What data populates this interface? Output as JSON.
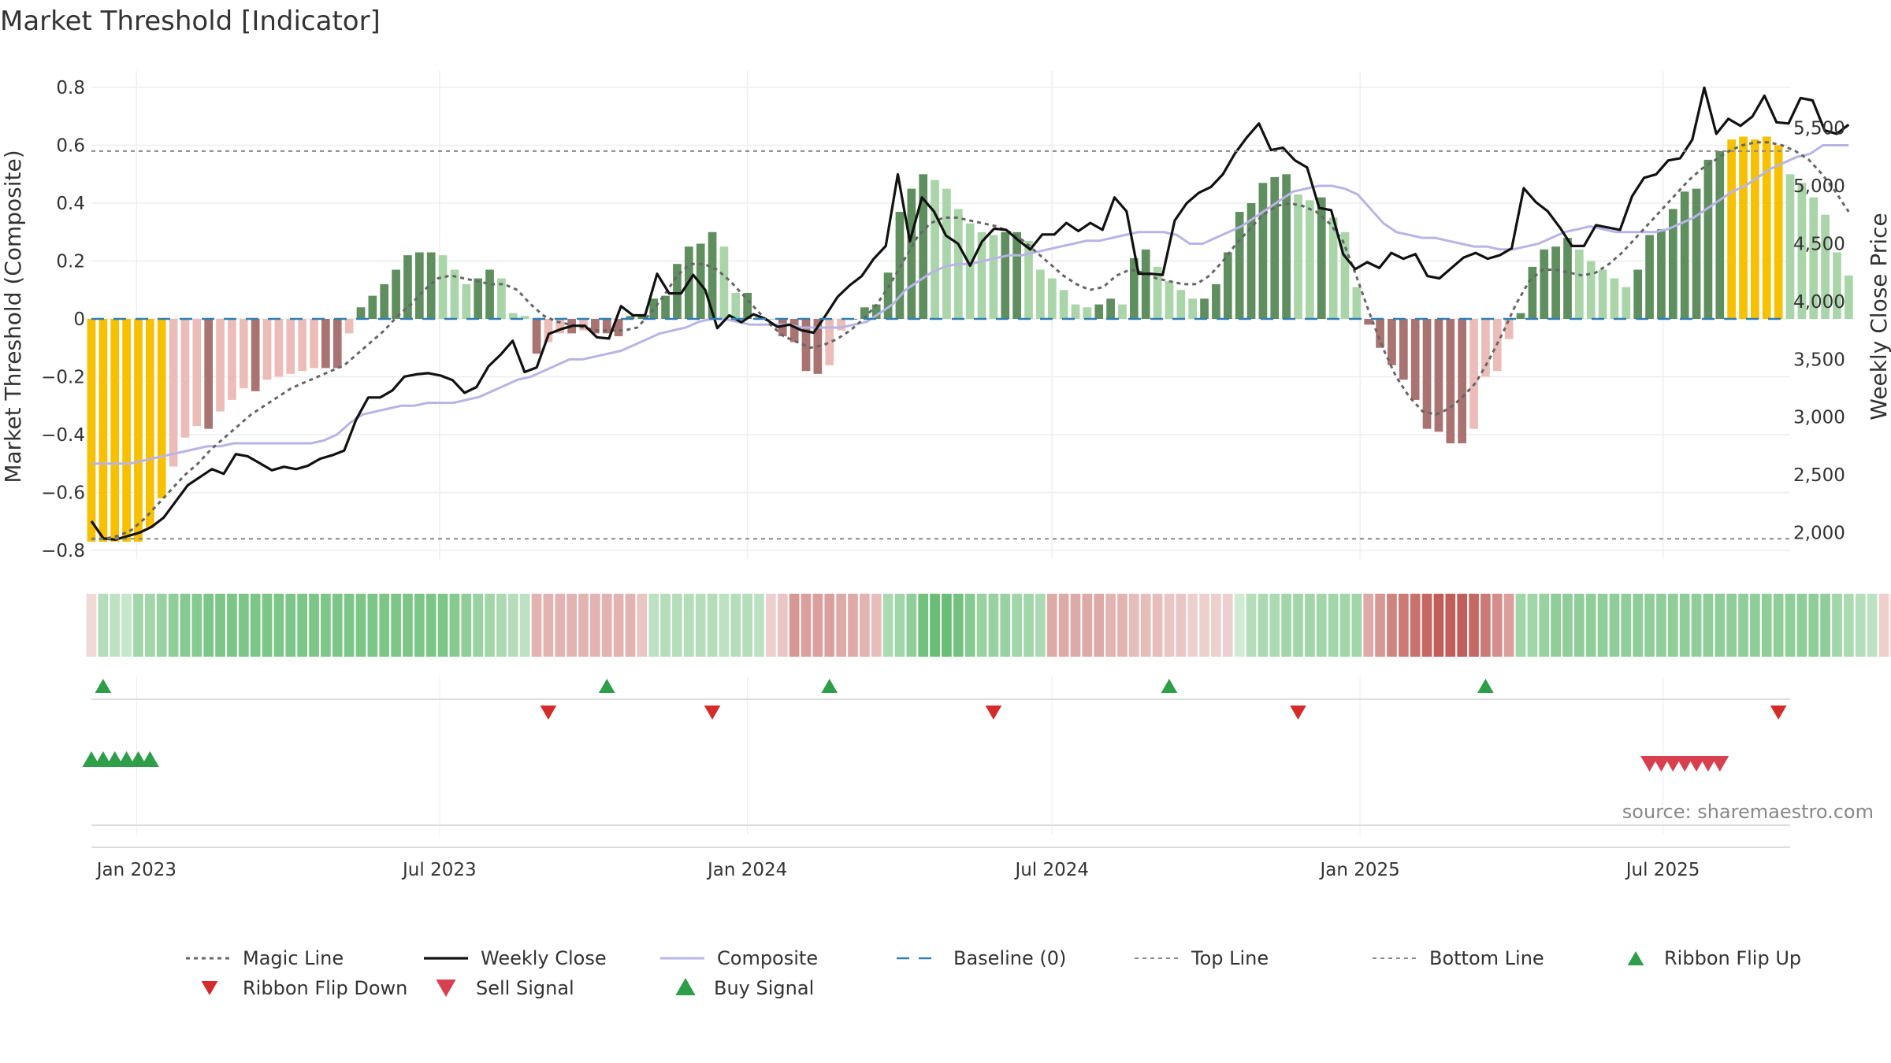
{
  "chart_data": {
    "type": "bar",
    "title": "Market Threshold [Indicator]",
    "ylabel_left": "Market Threshold (Composite)",
    "ylabel_right": "Weekly Close Price",
    "source": "source: sharemaestro.com",
    "x_start": "2022-12-05",
    "x_end": "2025-09-15",
    "x_ticks": [
      {
        "date": "2023-01-01",
        "label": "Jan 2023"
      },
      {
        "date": "2023-07-01",
        "label": "Jul 2023"
      },
      {
        "date": "2024-01-01",
        "label": "Jan 2024"
      },
      {
        "date": "2024-07-01",
        "label": "Jul 2024"
      },
      {
        "date": "2025-01-01",
        "label": "Jan 2025"
      },
      {
        "date": "2025-07-01",
        "label": "Jul 2025"
      }
    ],
    "y_left": {
      "min": -0.83,
      "max": 0.83,
      "ticks": [
        {
          "v": 0.8,
          "label": "0.8"
        },
        {
          "v": 0.6,
          "label": "0.6"
        },
        {
          "v": 0.4,
          "label": "0.4"
        },
        {
          "v": 0.2,
          "label": "0.2"
        },
        {
          "v": 0,
          "label": "0"
        },
        {
          "v": -0.2,
          "label": "−0.2"
        },
        {
          "v": -0.4,
          "label": "−0.4"
        },
        {
          "v": -0.6,
          "label": "−0.6"
        },
        {
          "v": -0.8,
          "label": "−0.8"
        }
      ]
    },
    "y_right": {
      "min": 1772,
      "max": 5927,
      "ticks": [
        {
          "v": 5500,
          "label": "5,500"
        },
        {
          "v": 5000,
          "label": "5,000"
        },
        {
          "v": 4500,
          "label": "4,500"
        },
        {
          "v": 4000,
          "label": "4,000"
        },
        {
          "v": 3500,
          "label": "3,500"
        },
        {
          "v": 3000,
          "label": "3,000"
        },
        {
          "v": 2500,
          "label": "2,500"
        },
        {
          "v": 2000,
          "label": "2,000"
        }
      ]
    },
    "top_line": 0.58,
    "bottom_line": -0.76,
    "baseline": 0,
    "composite_bars": [
      -0.77,
      -0.77,
      -0.77,
      -0.77,
      -0.77,
      -0.72,
      -0.62,
      -0.51,
      -0.41,
      -0.37,
      -0.38,
      -0.32,
      -0.28,
      -0.24,
      -0.25,
      -0.21,
      -0.2,
      -0.19,
      -0.18,
      -0.17,
      -0.17,
      -0.17,
      -0.05,
      0.04,
      0.08,
      0.12,
      0.17,
      0.22,
      0.23,
      0.23,
      0.22,
      0.17,
      0.12,
      0.14,
      0.17,
      0.14,
      0.02,
      0.01,
      -0.12,
      -0.08,
      -0.05,
      -0.05,
      -0.04,
      -0.05,
      -0.05,
      -0.06,
      0.01,
      0.01,
      0.07,
      0.08,
      0.19,
      0.25,
      0.26,
      0.3,
      0.25,
      0.09,
      0.09,
      0.01,
      0.0,
      -0.06,
      -0.08,
      -0.18,
      -0.19,
      -0.16,
      -0.04,
      0.0,
      0.04,
      0.05,
      0.16,
      0.37,
      0.45,
      0.5,
      0.48,
      0.45,
      0.38,
      0.33,
      0.3,
      0.29,
      0.3,
      0.3,
      0.27,
      0.17,
      0.14,
      0.1,
      0.05,
      0.04,
      0.05,
      0.07,
      0.05,
      0.21,
      0.24,
      0.18,
      0.13,
      0.1,
      0.07,
      0.07,
      0.12,
      0.23,
      0.37,
      0.4,
      0.47,
      0.49,
      0.5,
      0.43,
      0.41,
      0.42,
      0.35,
      0.3,
      0.11,
      -0.02,
      -0.1,
      -0.16,
      -0.21,
      -0.28,
      -0.38,
      -0.39,
      -0.43,
      -0.43,
      -0.38,
      -0.2,
      -0.18,
      -0.07,
      0.02,
      0.18,
      0.24,
      0.25,
      0.28,
      0.24,
      0.2,
      0.17,
      0.14,
      0.11,
      0.17,
      0.29,
      0.31,
      0.38,
      0.44,
      0.45,
      0.55,
      0.58,
      0.62,
      0.63,
      0.62,
      0.63,
      0.6,
      0.5,
      0.47,
      0.42,
      0.36,
      0.23,
      0.15
    ],
    "ribbon_strength": [
      -0.2,
      0.4,
      0.35,
      0.3,
      0.5,
      0.5,
      0.55,
      0.6,
      0.65,
      0.65,
      0.7,
      0.7,
      0.7,
      0.7,
      0.7,
      0.7,
      0.7,
      0.7,
      0.7,
      0.7,
      0.7,
      0.7,
      0.7,
      0.7,
      0.7,
      0.7,
      0.7,
      0.7,
      0.7,
      0.7,
      0.7,
      0.65,
      0.6,
      0.55,
      0.5,
      0.45,
      0.4,
      0.35,
      -0.4,
      -0.4,
      -0.4,
      -0.4,
      -0.4,
      -0.4,
      -0.4,
      -0.4,
      -0.4,
      -0.3,
      0.35,
      0.4,
      0.4,
      0.4,
      0.4,
      0.4,
      0.35,
      0.4,
      0.4,
      0.35,
      -0.25,
      -0.3,
      -0.55,
      -0.5,
      -0.5,
      -0.5,
      -0.45,
      -0.45,
      -0.4,
      -0.35,
      0.45,
      0.5,
      0.6,
      0.75,
      0.8,
      0.8,
      0.75,
      0.65,
      0.55,
      0.55,
      0.55,
      0.5,
      0.5,
      0.45,
      -0.45,
      -0.45,
      -0.45,
      -0.45,
      -0.45,
      -0.4,
      -0.4,
      -0.35,
      -0.35,
      -0.35,
      -0.3,
      -0.3,
      -0.25,
      -0.25,
      -0.25,
      -0.25,
      0.25,
      0.4,
      0.45,
      0.45,
      0.5,
      0.5,
      0.5,
      0.5,
      0.5,
      0.5,
      0.5,
      -0.45,
      -0.55,
      -0.65,
      -0.7,
      -0.75,
      -0.8,
      -0.85,
      -0.85,
      -0.85,
      -0.8,
      -0.7,
      -0.6,
      -0.5,
      0.5,
      0.5,
      0.55,
      0.6,
      0.6,
      0.6,
      0.6,
      0.6,
      0.6,
      0.6,
      0.6,
      0.6,
      0.6,
      0.6,
      0.6,
      0.6,
      0.6,
      0.6,
      0.6,
      0.6,
      0.6,
      0.6,
      0.6,
      0.6,
      0.6,
      0.6,
      0.6,
      0.5,
      0.45,
      0.4,
      0.35,
      -0.25,
      -0.35,
      -0.35
    ],
    "weekly_close": [
      2100,
      1950,
      1940,
      1970,
      2000,
      2050,
      2130,
      2270,
      2410,
      2480,
      2550,
      2510,
      2680,
      2660,
      2600,
      2540,
      2570,
      2550,
      2580,
      2640,
      2670,
      2710,
      2980,
      3170,
      3170,
      3230,
      3350,
      3370,
      3380,
      3360,
      3320,
      3210,
      3260,
      3440,
      3540,
      3660,
      3390,
      3430,
      3720,
      3760,
      3790,
      3790,
      3690,
      3680,
      3960,
      3880,
      3880,
      4240,
      4070,
      4070,
      4230,
      4100,
      3770,
      3880,
      3820,
      3890,
      3850,
      3780,
      3800,
      3750,
      3730,
      3880,
      4040,
      4140,
      4220,
      4370,
      4480,
      5100,
      4520,
      4900,
      4780,
      4570,
      4500,
      4310,
      4520,
      4630,
      4620,
      4530,
      4450,
      4580,
      4580,
      4680,
      4610,
      4680,
      4620,
      4900,
      4780,
      4240,
      4240,
      4230,
      4700,
      4850,
      4940,
      4990,
      5100,
      5280,
      5420,
      5540,
      5310,
      5330,
      5220,
      5160,
      4810,
      4790,
      4410,
      4280,
      4340,
      4290,
      4420,
      4370,
      4410,
      4220,
      4200,
      4290,
      4380,
      4420,
      4370,
      4400,
      4460,
      4980,
      4860,
      4780,
      4640,
      4480,
      4480,
      4660,
      4640,
      4620,
      4910,
      5070,
      5100,
      5220,
      5240,
      5400,
      5850,
      5450,
      5580,
      5520,
      5600,
      5780,
      5550,
      5540,
      5760,
      5740,
      5480,
      5450,
      5530
    ],
    "composite_line": [
      -0.5,
      -0.5,
      -0.5,
      -0.5,
      -0.49,
      -0.48,
      -0.47,
      -0.46,
      -0.45,
      -0.44,
      -0.44,
      -0.43,
      -0.43,
      -0.43,
      -0.43,
      -0.43,
      -0.43,
      -0.43,
      -0.42,
      -0.4,
      -0.36,
      -0.33,
      -0.32,
      -0.31,
      -0.3,
      -0.3,
      -0.29,
      -0.29,
      -0.29,
      -0.28,
      -0.27,
      -0.25,
      -0.23,
      -0.21,
      -0.2,
      -0.18,
      -0.16,
      -0.14,
      -0.14,
      -0.13,
      -0.12,
      -0.11,
      -0.09,
      -0.07,
      -0.05,
      -0.04,
      -0.03,
      -0.01,
      0.0,
      0.0,
      -0.01,
      -0.02,
      -0.02,
      -0.02,
      -0.02,
      -0.03,
      -0.03,
      -0.03,
      -0.03,
      -0.02,
      -0.01,
      0.02,
      0.05,
      0.1,
      0.13,
      0.16,
      0.18,
      0.19,
      0.19,
      0.2,
      0.21,
      0.22,
      0.22,
      0.23,
      0.24,
      0.25,
      0.26,
      0.27,
      0.27,
      0.28,
      0.29,
      0.3,
      0.3,
      0.3,
      0.29,
      0.26,
      0.26,
      0.28,
      0.3,
      0.32,
      0.35,
      0.38,
      0.41,
      0.44,
      0.45,
      0.46,
      0.46,
      0.45,
      0.43,
      0.38,
      0.33,
      0.3,
      0.29,
      0.28,
      0.28,
      0.27,
      0.26,
      0.25,
      0.25,
      0.24,
      0.24,
      0.25,
      0.26,
      0.28,
      0.3,
      0.31,
      0.32,
      0.31,
      0.3,
      0.3,
      0.3,
      0.3,
      0.31,
      0.33,
      0.35,
      0.38,
      0.41,
      0.44,
      0.46,
      0.49,
      0.52,
      0.54,
      0.56,
      0.57,
      0.6,
      0.6,
      0.6
    ],
    "magic_line": [
      -0.76,
      -0.76,
      -0.75,
      -0.73,
      -0.69,
      -0.64,
      -0.59,
      -0.54,
      -0.5,
      -0.45,
      -0.41,
      -0.37,
      -0.33,
      -0.3,
      -0.27,
      -0.24,
      -0.22,
      -0.2,
      -0.18,
      -0.16,
      -0.12,
      -0.08,
      -0.04,
      0.01,
      0.05,
      0.1,
      0.14,
      0.15,
      0.14,
      0.13,
      0.12,
      0.12,
      0.1,
      0.05,
      0.01,
      -0.01,
      -0.02,
      -0.03,
      -0.04,
      -0.04,
      -0.04,
      -0.03,
      0.02,
      0.08,
      0.15,
      0.19,
      0.19,
      0.17,
      0.13,
      0.08,
      0.03,
      -0.02,
      -0.06,
      -0.08,
      -0.1,
      -0.09,
      -0.07,
      -0.04,
      0.0,
      0.05,
      0.12,
      0.2,
      0.28,
      0.33,
      0.35,
      0.35,
      0.34,
      0.33,
      0.32,
      0.3,
      0.27,
      0.23,
      0.19,
      0.15,
      0.12,
      0.1,
      0.11,
      0.15,
      0.17,
      0.16,
      0.14,
      0.13,
      0.12,
      0.12,
      0.15,
      0.2,
      0.26,
      0.31,
      0.36,
      0.39,
      0.4,
      0.39,
      0.37,
      0.33,
      0.27,
      0.15,
      0.02,
      -0.1,
      -0.2,
      -0.27,
      -0.32,
      -0.33,
      -0.31,
      -0.27,
      -0.22,
      -0.14,
      -0.05,
      0.05,
      0.13,
      0.17,
      0.17,
      0.16,
      0.15,
      0.16,
      0.19,
      0.23,
      0.28,
      0.33,
      0.38,
      0.43,
      0.48,
      0.52,
      0.55,
      0.58,
      0.6,
      0.61,
      0.61,
      0.6,
      0.58,
      0.55,
      0.5,
      0.44,
      0.37
    ],
    "buy_signals": [
      "2022-12-12",
      "2023-10-09",
      "2024-02-19",
      "2024-09-09",
      "2025-03-17"
    ],
    "sell_signals": [
      "2023-09-04",
      "2023-12-11",
      "2024-05-27",
      "2024-11-25",
      "2025-09-08"
    ],
    "ribbon_flip_up": [
      "2022-12-05",
      "2022-12-12",
      "2022-12-19",
      "2022-12-26",
      "2023-01-02",
      "2023-01-09"
    ],
    "ribbon_flip_down": [
      "2025-06-23",
      "2025-06-30",
      "2025-07-07",
      "2025-07-14",
      "2025-07-21",
      "2025-07-28",
      "2025-08-04"
    ],
    "legend": [
      {
        "key": "magic",
        "label": "Magic Line"
      },
      {
        "key": "close",
        "label": "Weekly Close"
      },
      {
        "key": "composite",
        "label": "Composite"
      },
      {
        "key": "baseline",
        "label": "Baseline (0)"
      },
      {
        "key": "top",
        "label": "Top Line"
      },
      {
        "key": "bottom",
        "label": "Bottom Line"
      },
      {
        "key": "flipup",
        "label": "Ribbon Flip Up"
      },
      {
        "key": "flipdown",
        "label": "Ribbon Flip Down"
      },
      {
        "key": "sell",
        "label": "Sell Signal"
      },
      {
        "key": "buy",
        "label": "Buy Signal"
      }
    ],
    "colors": {
      "bar_positive_strong": "#5f8f5f",
      "bar_positive_weak": "#a9d5a9",
      "bar_negative_strong": "#a87370",
      "bar_negative_weak": "#ecbcb8",
      "bar_extreme": "#f7c000",
      "weekly_close": "#111111",
      "composite_line": "#b8b4e6",
      "magic_line": "#666666",
      "baseline": "#2f7fb5",
      "top_bottom_line": "#888888",
      "buy": "#2e9e48",
      "sell": "#d52b2b",
      "flip_up": "#2e9e48",
      "flip_down": "#d84050",
      "ribbon_pos": "#5cb86a",
      "ribbon_neg": "#c05a55",
      "grid": "#eeeeee"
    }
  }
}
